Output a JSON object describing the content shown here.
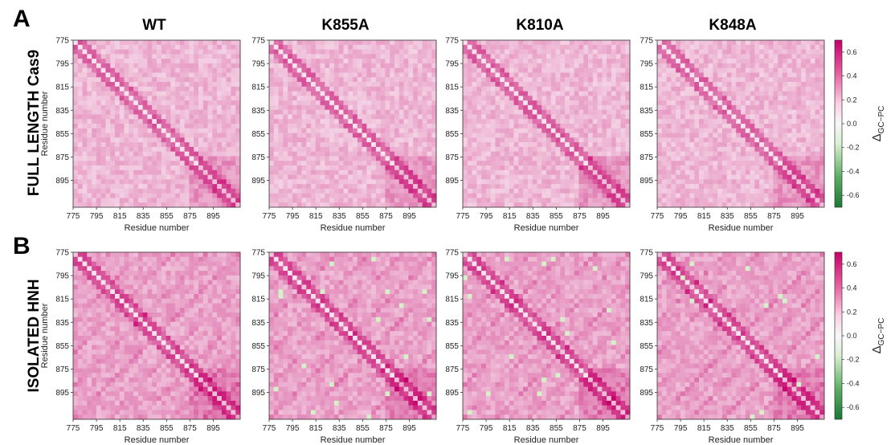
{
  "panels": [
    {
      "letter": "A",
      "row_label": "FULL LENGTH Cas9",
      "colorbar_label": "Δ",
      "colorbar_label_sub": "GC−PC"
    },
    {
      "letter": "B",
      "row_label": "ISOLATED HNH",
      "colorbar_label": "Δ",
      "colorbar_label_sub": "GC−PC"
    }
  ],
  "column_titles": [
    "WT",
    "K855A",
    "K810A",
    "K848A"
  ],
  "chart_data": {
    "type": "heatmap",
    "xlabel": "Residue number",
    "ylabel": "Residue number",
    "x_ticks": [
      "775",
      "795",
      "815",
      "835",
      "855",
      "875",
      "895"
    ],
    "y_ticks": [
      "775",
      "795",
      "815",
      "835",
      "855",
      "875",
      "895"
    ],
    "range": [
      775,
      918
    ],
    "colorbar": {
      "ticks": [
        "0.6",
        "0.4",
        "0.2",
        "0.0",
        "-0.2",
        "-0.4",
        "-0.6"
      ],
      "vmin": -0.7,
      "vmax": 0.7,
      "colormap": "PiYG_r",
      "colors": {
        "low": "#1a7a1a",
        "mid": "#f7f7f7",
        "high": "#c5006a"
      }
    },
    "grid": false
  }
}
